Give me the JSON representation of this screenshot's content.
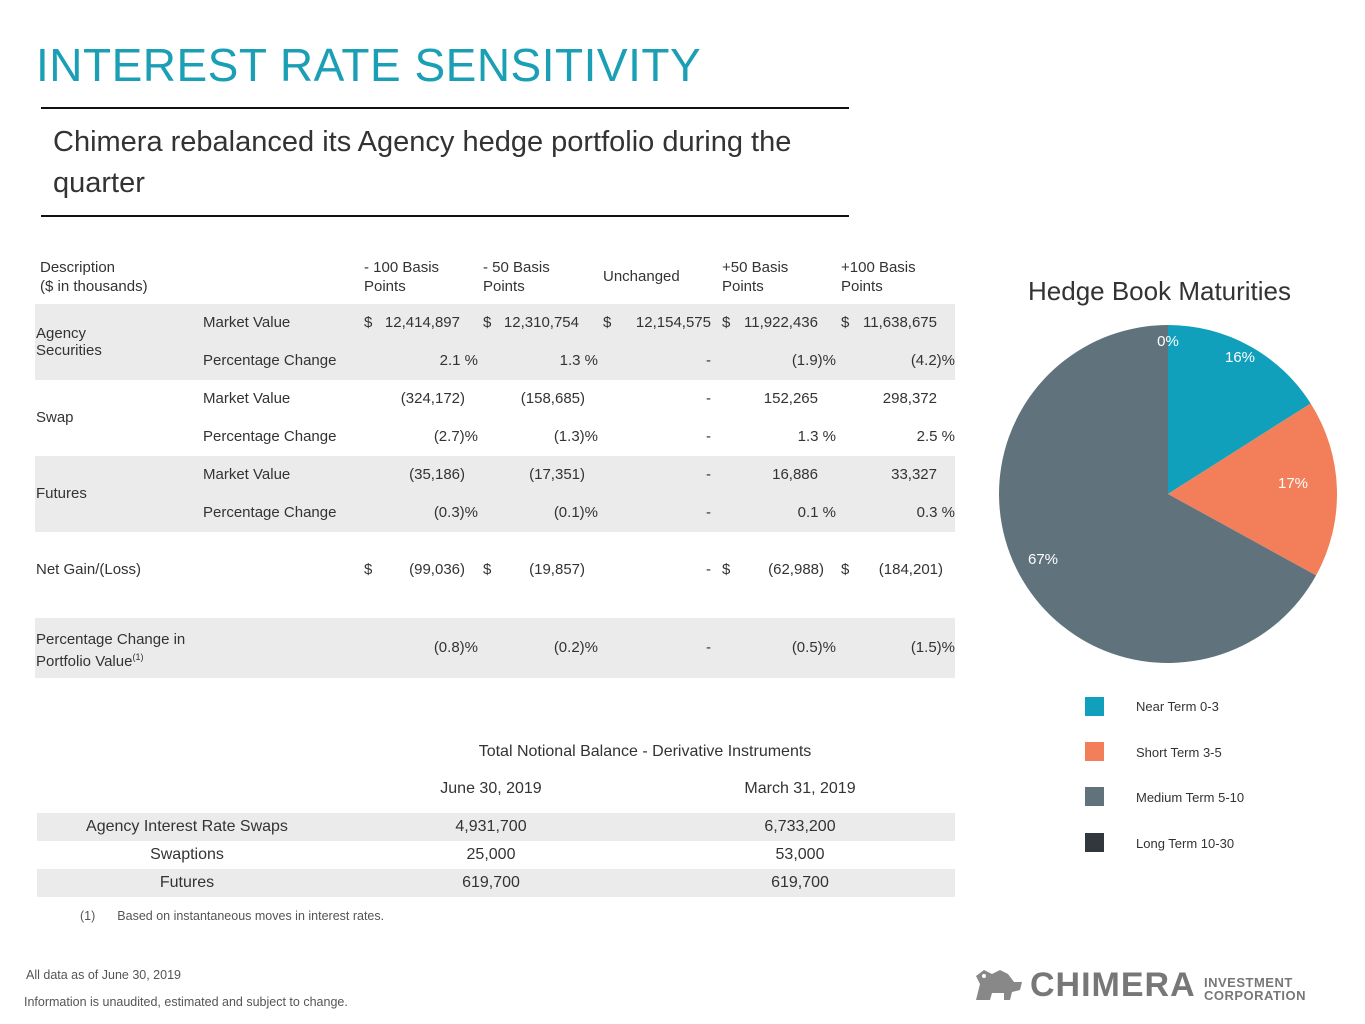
{
  "title": "INTEREST RATE SENSITIVITY",
  "subtitle": "Chimera rebalanced its Agency hedge portfolio during the quarter",
  "sensitivity_table": {
    "description_header_1": "Description",
    "description_header_2": "($ in thousands)",
    "columns": [
      {
        "line1": "- 100 Basis",
        "line2": "Points"
      },
      {
        "line1": "- 50 Basis",
        "line2": "Points"
      },
      {
        "line1": "Unchanged",
        "line2": ""
      },
      {
        "line1": "+50 Basis",
        "line2": "Points"
      },
      {
        "line1": "+100 Basis",
        "line2": "Points"
      }
    ],
    "agency": {
      "label_1": "Agency",
      "label_2": "Securities",
      "mv_label": "Market Value",
      "mv": [
        "12,414,897",
        "12,310,754",
        "12,154,575",
        "11,922,436",
        "11,638,675"
      ],
      "pc_label": "Percentage Change",
      "pc": [
        "2.1 %",
        "1.3 %",
        "-",
        "(1.9)%",
        "(4.2)%"
      ]
    },
    "swap": {
      "label": "Swap",
      "mv_label": "Market Value",
      "mv": [
        "(324,172)",
        "(158,685)",
        "-",
        "152,265",
        "298,372"
      ],
      "pc_label": "Percentage Change",
      "pc": [
        "(2.7)%",
        "(1.3)%",
        "-",
        "1.3 %",
        "2.5 %"
      ]
    },
    "futures": {
      "label": "Futures",
      "mv_label": "Market Value",
      "mv": [
        "(35,186)",
        "(17,351)",
        "-",
        "16,886",
        "33,327"
      ],
      "pc_label": "Percentage Change",
      "pc": [
        "(0.3)%",
        "(0.1)%",
        "-",
        "0.1 %",
        "0.3 %"
      ]
    },
    "net": {
      "label": "Net Gain/(Loss)",
      "values": [
        "(99,036)",
        "(19,857)",
        "-",
        "(62,988)",
        "(184,201)"
      ]
    },
    "portfolio": {
      "label_1": "Percentage Change in",
      "label_2": "Portfolio Value",
      "footnote_mark": "(1)",
      "values": [
        "(0.8)%",
        "(0.2)%",
        "-",
        "(0.5)%",
        "(1.5)%"
      ]
    },
    "currency_symbol": "$"
  },
  "notional_table": {
    "title": "Total Notional Balance - Derivative Instruments",
    "col_1": "June 30, 2019",
    "col_2": "March 31, 2019",
    "rows": [
      {
        "label": "Agency Interest Rate Swaps",
        "v1": "4,931,700",
        "v2": "6,733,200"
      },
      {
        "label": "Swaptions",
        "v1": "25,000",
        "v2": "53,000"
      },
      {
        "label": "Futures",
        "v1": "619,700",
        "v2": "619,700"
      }
    ]
  },
  "footnote": {
    "mark": "(1)",
    "text": "Based on instantaneous moves in interest rates."
  },
  "as_of": "All data as of June 30, 2019",
  "disclaimer": "Information is unaudited, estimated and subject to change.",
  "chart_data": {
    "type": "pie",
    "title": "Hedge Book Maturities",
    "categories": [
      "Near Term 0-3",
      "Short Term 3-5",
      "Medium Term 5-10",
      "Long Term 10-30"
    ],
    "values": [
      16,
      17,
      67,
      0
    ],
    "labels": [
      "16%",
      "17%",
      "67%",
      "0%"
    ],
    "colors": [
      "#11a0bb",
      "#f27f5a",
      "#60737d",
      "#30373d"
    ],
    "legend": "right-bottom"
  },
  "logo": {
    "name": "CHIMERA",
    "sub_1": "INVESTMENT",
    "sub_2": "CORPORATION"
  }
}
